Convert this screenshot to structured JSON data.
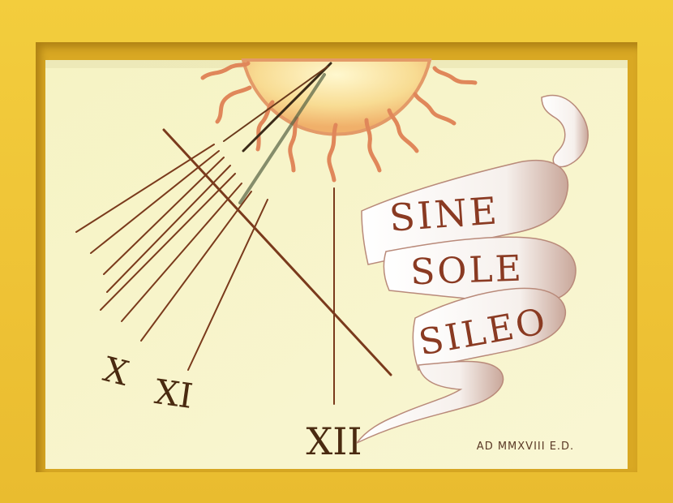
{
  "hour_labels": {
    "x": "X",
    "xi": "XI",
    "xii": "XII"
  },
  "motto": {
    "line1": "SINE",
    "line2": "SOLE",
    "line3": "SILEO"
  },
  "signature": "AD MMXVIII  E.D.",
  "colors": {
    "wall": "#f0c93a",
    "dial_face": "#f7f4c8",
    "hour_lines": "#7a3a1c",
    "sun": "#f6d78a",
    "sun_rays": "#e0875a",
    "motto_text": "#8a3a22",
    "ribbon": "#ffffff"
  },
  "icons": {
    "sun": "sun-icon",
    "ribbon": "scroll-banner-icon",
    "gnomon": "gnomon-icon"
  }
}
